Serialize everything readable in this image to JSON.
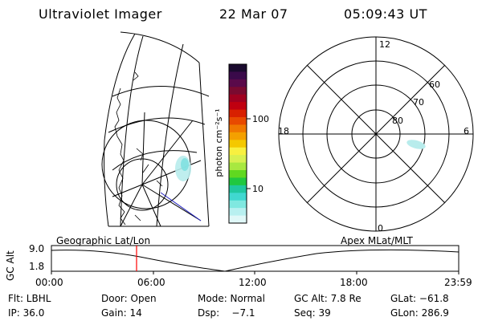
{
  "header": {
    "instrument": "Ultraviolet Imager",
    "date": "22 Mar 07",
    "time": "05:09:43 UT"
  },
  "colorbar": {
    "unit_label": "photon cm⁻²s⁻¹",
    "ticks": [
      "100",
      "10"
    ],
    "colors": [
      "#1a0a2e",
      "#3a0a4a",
      "#5a0a4a",
      "#7a0a30",
      "#a00020",
      "#c00010",
      "#d82000",
      "#e84a00",
      "#f07800",
      "#f4a000",
      "#f4c800",
      "#f8f040",
      "#d8f050",
      "#a8e840",
      "#60d820",
      "#20c840",
      "#20c8a0",
      "#40d8d0",
      "#80e8e0",
      "#b8f0f0",
      "#e0f8f8"
    ]
  },
  "polar_plot": {
    "mlt_labels": {
      "top": "12",
      "bottom": "0",
      "left": "18",
      "right": "6"
    },
    "lat_labels": [
      "60",
      "70",
      "80"
    ]
  },
  "timeline": {
    "y_axis_label": "GC Alt",
    "y_ticks": [
      "9.0",
      "1.8"
    ],
    "left_caption": "Geographic Lat/Lon",
    "right_caption": "Apex MLat/MLT",
    "x_ticks": [
      "00:00",
      "06:00",
      "12:00",
      "18:00",
      "23:59"
    ],
    "marker_color": "#ff0000"
  },
  "status": {
    "row1": [
      "Flt: LBHL",
      "Door: Open",
      "Mode: Normal",
      "GC Alt: 7.8 Re",
      "GLat: −61.8"
    ],
    "row2": [
      "IP: 36.0",
      "Gain: 14",
      "Dsp:    −7.1",
      "Seq: 39",
      "GLon: 286.9"
    ]
  }
}
